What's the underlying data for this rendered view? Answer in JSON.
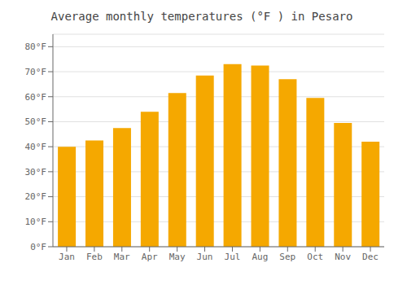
{
  "chart_data": {
    "type": "bar",
    "title": "Average monthly temperatures (°F ) in Pesaro",
    "categories": [
      "Jan",
      "Feb",
      "Mar",
      "Apr",
      "May",
      "Jun",
      "Jul",
      "Aug",
      "Sep",
      "Oct",
      "Nov",
      "Dec"
    ],
    "values": [
      40,
      42.5,
      47.5,
      54,
      61.5,
      68.5,
      73,
      72.5,
      67,
      59.5,
      49.5,
      42
    ],
    "color": "#F5A800",
    "ylim": [
      0,
      85
    ],
    "yticks": [
      {
        "value": 0,
        "label": "0°F"
      },
      {
        "value": 10,
        "label": "10°F"
      },
      {
        "value": 20,
        "label": "20°F"
      },
      {
        "value": 30,
        "label": "30°F"
      },
      {
        "value": 40,
        "label": "40°F"
      },
      {
        "value": 50,
        "label": "50°F"
      },
      {
        "value": 60,
        "label": "60°F"
      },
      {
        "value": 70,
        "label": "70°F"
      },
      {
        "value": 80,
        "label": "80°F"
      }
    ],
    "grid": true
  }
}
